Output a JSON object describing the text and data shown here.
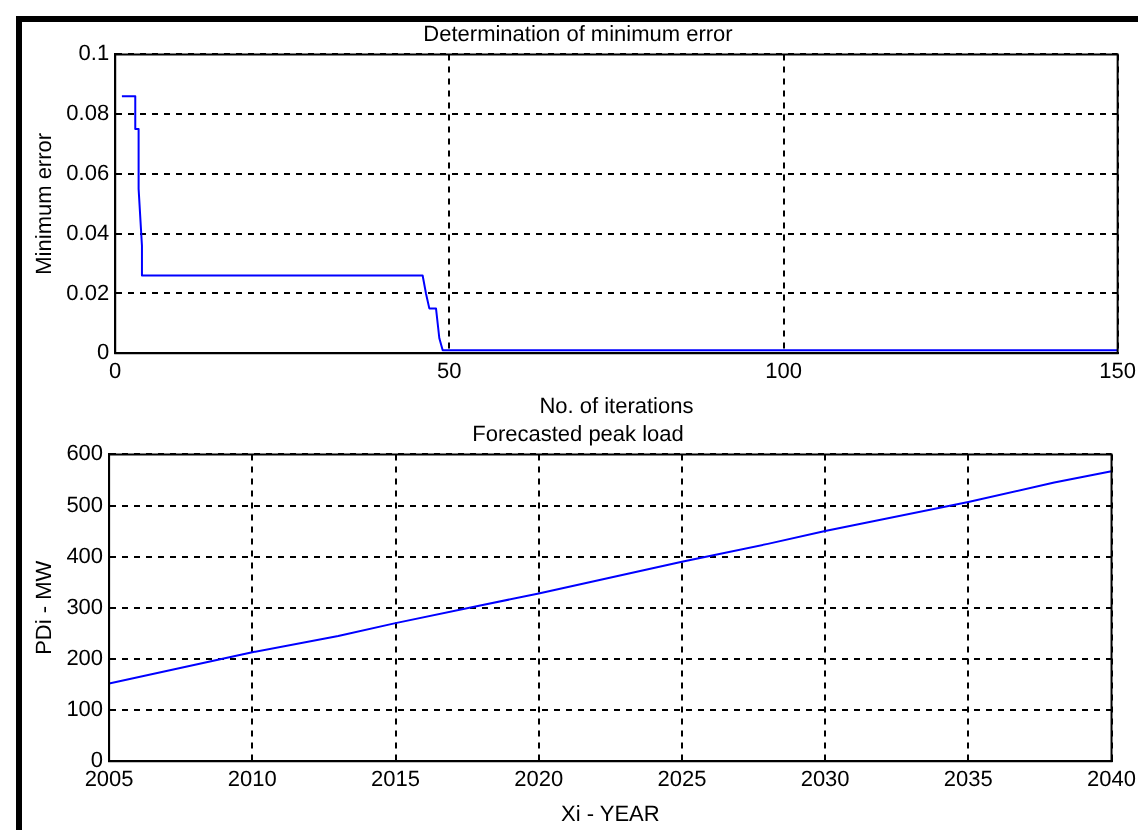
{
  "chart_data": [
    {
      "type": "line",
      "title": "Determination of minimum error",
      "xlabel": "No. of iterations",
      "ylabel": "Minimum error",
      "x": [
        1,
        3,
        3,
        3.5,
        3.5,
        4,
        4,
        46,
        46.5,
        47,
        48,
        48.5,
        49,
        150
      ],
      "values": [
        0.086,
        0.086,
        0.075,
        0.075,
        0.055,
        0.036,
        0.026,
        0.026,
        0.02,
        0.015,
        0.015,
        0.005,
        0.001,
        0.001
      ],
      "color": "#0000ff",
      "xlim": [
        0,
        150
      ],
      "ylim": [
        0,
        0.1
      ],
      "xticks": [
        0,
        50,
        100,
        150
      ],
      "yticks": [
        0,
        0.02,
        0.04,
        0.06,
        0.08,
        0.1
      ],
      "grid": true,
      "marker": "none"
    },
    {
      "type": "line",
      "title": "Forecasted peak load",
      "xlabel": "Xi - YEAR",
      "ylabel": "PDi - MW",
      "x": [
        2005,
        2010,
        2013,
        2015,
        2018,
        2020,
        2025,
        2028,
        2030,
        2035,
        2038,
        2040
      ],
      "values": [
        152,
        213,
        245,
        270,
        305,
        328,
        390,
        425,
        450,
        507,
        545,
        567
      ],
      "color": "#0000ff",
      "xlim": [
        2005,
        2040
      ],
      "ylim": [
        0,
        600
      ],
      "xticks": [
        2005,
        2010,
        2015,
        2020,
        2025,
        2030,
        2035,
        2040
      ],
      "yticks": [
        0,
        100,
        200,
        300,
        400,
        500,
        600
      ],
      "grid": true,
      "marker": "none"
    }
  ]
}
